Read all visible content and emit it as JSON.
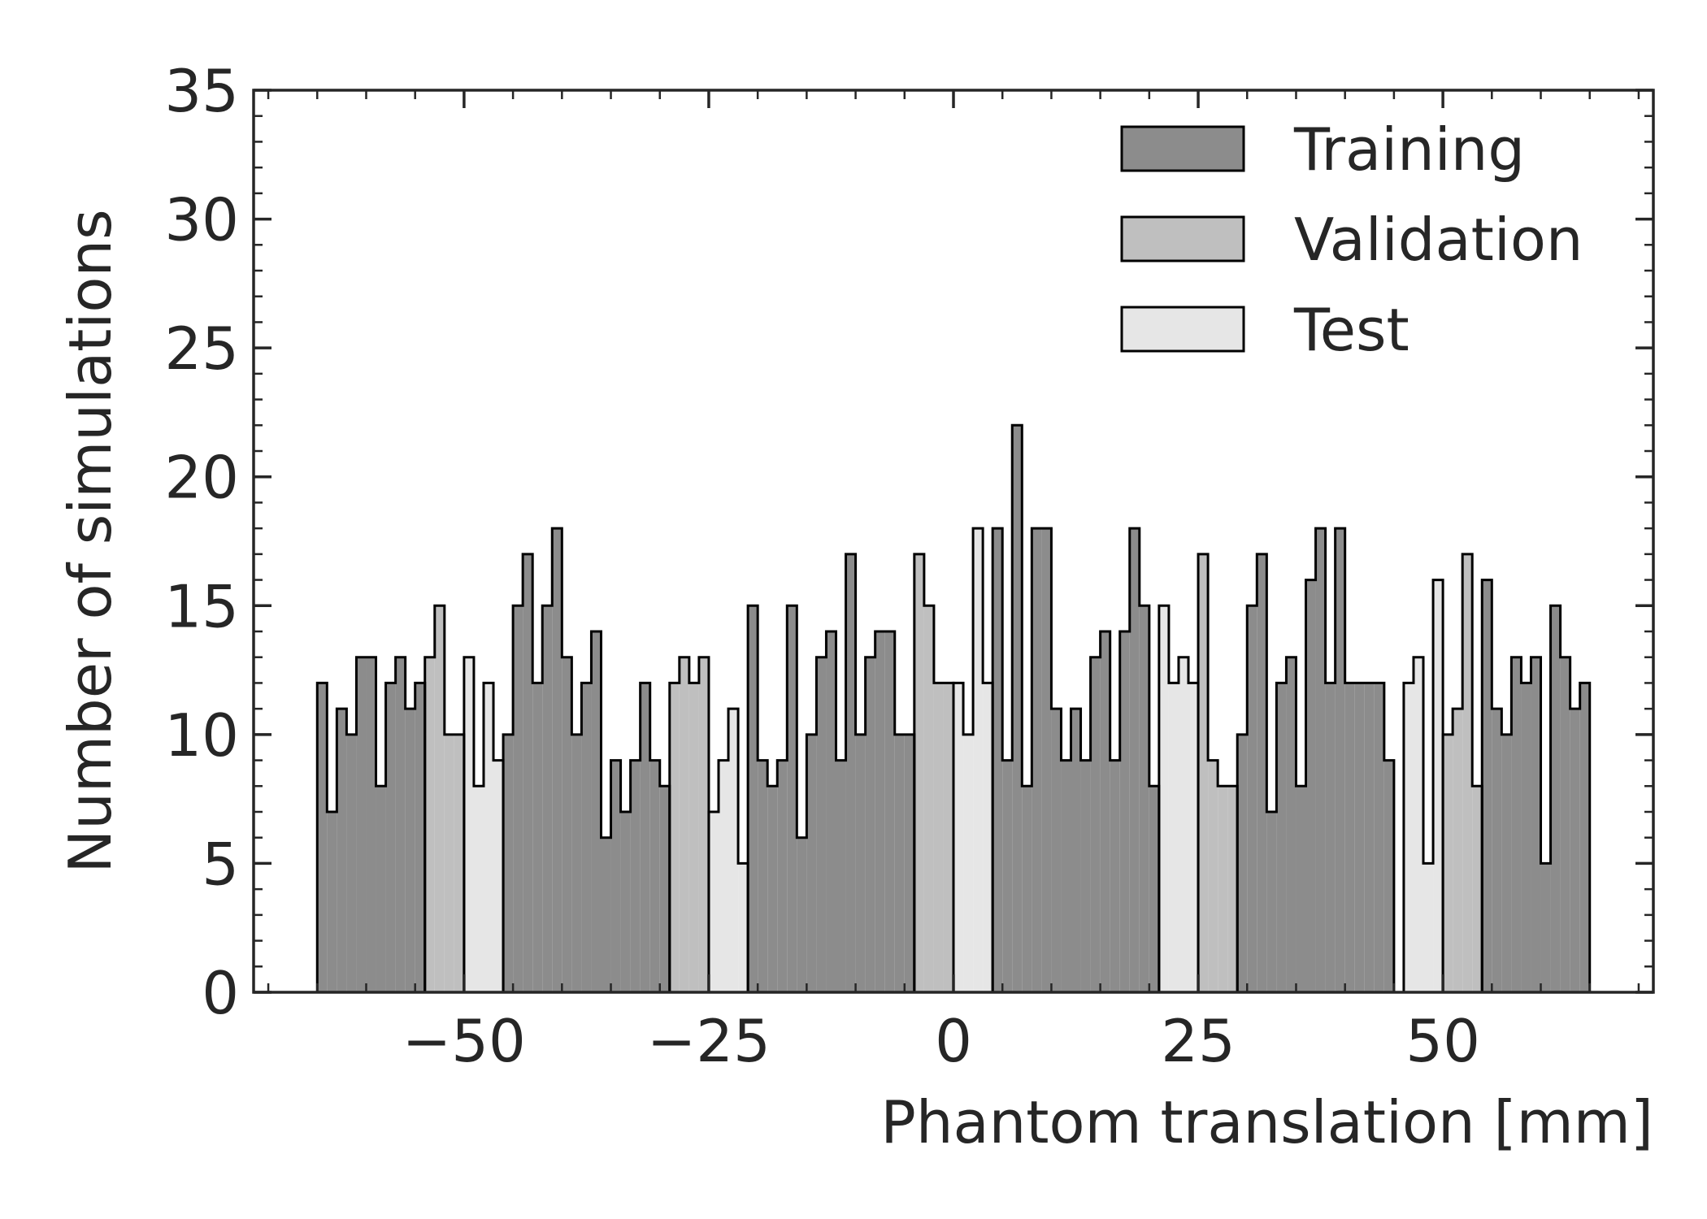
{
  "chart_data": {
    "type": "bar",
    "xlabel": "Phantom translation [mm]",
    "ylabel": "Number of simulations",
    "xlim": [
      -71.5,
      71.5
    ],
    "ylim": [
      0,
      35
    ],
    "x_ticks": [
      -50,
      -25,
      0,
      25,
      50
    ],
    "x_tick_labels": [
      "−50",
      "−25",
      "0",
      "25",
      "50"
    ],
    "y_ticks": [
      0,
      5,
      10,
      15,
      20,
      25,
      30,
      35
    ],
    "y_tick_labels": [
      "0",
      "5",
      "10",
      "15",
      "20",
      "25",
      "30",
      "35"
    ],
    "bin_width": 1.0,
    "legend_position": "top-right",
    "grid": false,
    "series": [
      {
        "name": "Training",
        "color": "#8c8c8c",
        "segments": [
          {
            "start": -65,
            "values": [
              12,
              7,
              11,
              10,
              13,
              13,
              8,
              12,
              13,
              11,
              12
            ]
          },
          {
            "start": -46,
            "values": [
              10,
              15,
              17,
              12,
              15,
              18,
              13,
              10,
              12,
              14,
              6,
              9,
              7,
              9,
              12,
              9,
              8
            ]
          },
          {
            "start": -21,
            "values": [
              15,
              9,
              8,
              9,
              15,
              6,
              10,
              13,
              14,
              9,
              17,
              10,
              13,
              14,
              14,
              10,
              10
            ]
          },
          {
            "start": 4,
            "values": [
              18,
              9,
              22,
              8,
              18,
              18,
              11,
              9,
              11,
              9,
              13,
              14,
              9,
              14,
              18,
              15,
              8
            ]
          },
          {
            "start": 29,
            "values": [
              10,
              15,
              17,
              7,
              12,
              13,
              8,
              16,
              18,
              12,
              18,
              12,
              12,
              12,
              12,
              9
            ]
          },
          {
            "start": 54,
            "values": [
              16,
              11,
              10,
              13,
              12,
              13,
              5,
              15,
              13,
              11,
              12
            ]
          }
        ]
      },
      {
        "name": "Validation",
        "color": "#bfbfbf",
        "segments": [
          {
            "start": -54,
            "values": [
              13,
              15,
              10,
              10
            ]
          },
          {
            "start": -29,
            "values": [
              12,
              13,
              12,
              13
            ]
          },
          {
            "start": -4,
            "values": [
              17,
              15,
              12,
              12
            ]
          },
          {
            "start": 25,
            "values": [
              17,
              9,
              8,
              8
            ]
          },
          {
            "start": 50,
            "values": [
              10,
              11,
              17,
              8
            ]
          }
        ]
      },
      {
        "name": "Test",
        "color": "#e6e6e6",
        "segments": [
          {
            "start": -50,
            "values": [
              13,
              8,
              12,
              9
            ]
          },
          {
            "start": -25,
            "values": [
              7,
              9,
              11,
              5
            ]
          },
          {
            "start": 0,
            "values": [
              12,
              10,
              18,
              12
            ]
          },
          {
            "start": 21,
            "values": [
              15,
              12,
              13,
              12
            ]
          },
          {
            "start": 46,
            "values": [
              12,
              13,
              5,
              16
            ]
          }
        ]
      }
    ]
  }
}
